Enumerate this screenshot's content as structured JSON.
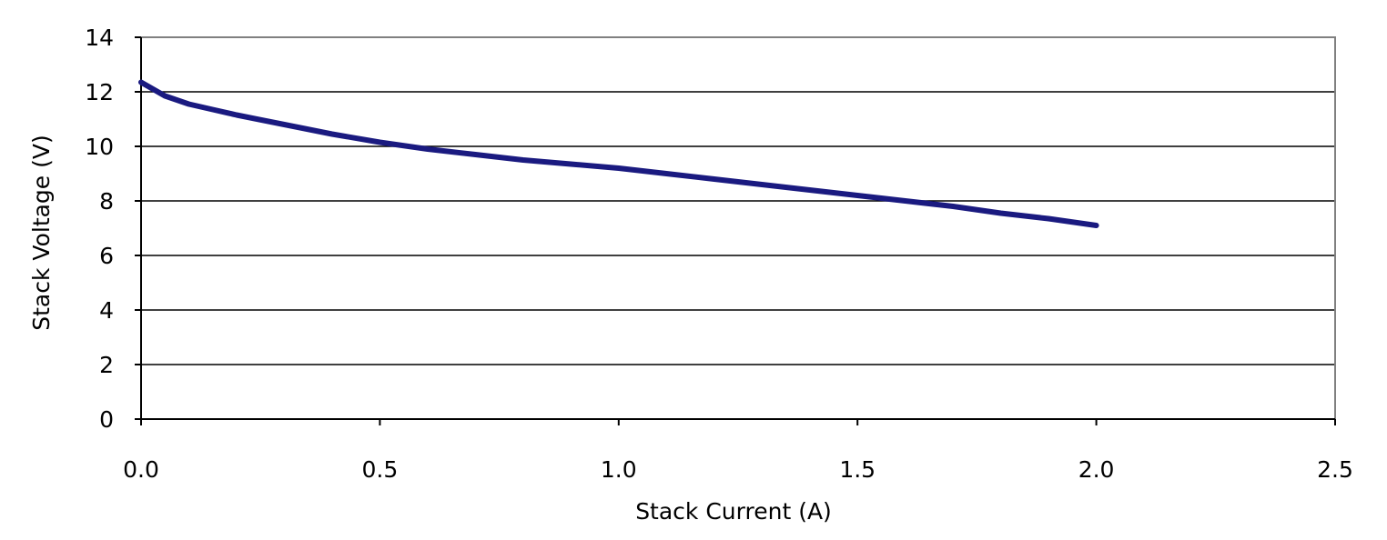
{
  "chart_data": {
    "type": "line",
    "title": "",
    "xlabel": "Stack Current (A)",
    "ylabel": "Stack Voltage (V)",
    "xlim": [
      0,
      2.5
    ],
    "ylim": [
      0,
      14
    ],
    "x_ticks": [
      "0.0",
      "0.5",
      "1.0",
      "1.5",
      "2.0",
      "2.5"
    ],
    "y_ticks": [
      "0",
      "2",
      "4",
      "6",
      "8",
      "10",
      "12",
      "14"
    ],
    "grid": "horizontal",
    "legend": "none",
    "line_color": "#1a1a80",
    "series": [
      {
        "x": [
          0.0,
          0.02,
          0.05,
          0.1,
          0.15,
          0.2,
          0.3,
          0.4,
          0.5,
          0.6,
          0.7,
          0.8,
          0.9,
          1.0,
          1.1,
          1.2,
          1.3,
          1.4,
          1.5,
          1.6,
          1.7,
          1.8,
          1.9,
          2.0
        ],
        "y": [
          12.35,
          12.15,
          11.85,
          11.55,
          11.35,
          11.15,
          10.8,
          10.45,
          10.15,
          9.9,
          9.7,
          9.5,
          9.35,
          9.2,
          9.0,
          8.8,
          8.6,
          8.4,
          8.2,
          8.0,
          7.8,
          7.55,
          7.35,
          7.1
        ]
      }
    ]
  }
}
